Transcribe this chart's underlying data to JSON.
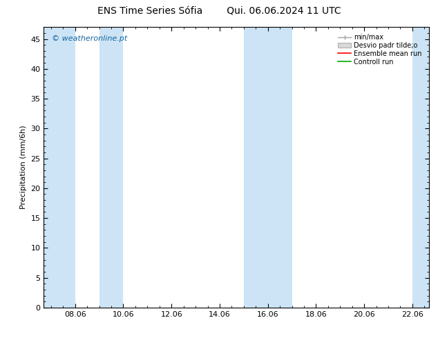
{
  "title": "ENS Time Series Sófia        Qui. 06.06.2024 11 UTC",
  "ylabel": "Precipitation (mm/6h)",
  "ylim": [
    0,
    47
  ],
  "yticks": [
    0,
    5,
    10,
    15,
    20,
    25,
    30,
    35,
    40,
    45
  ],
  "xlim_start": 6.7,
  "xlim_end": 22.7,
  "xtick_positions": [
    8.0,
    10.0,
    12.0,
    14.0,
    16.0,
    18.0,
    20.0,
    22.0
  ],
  "xtick_labels": [
    "08.06",
    "10.06",
    "12.06",
    "14.06",
    "16.06",
    "18.06",
    "20.06",
    "22.06"
  ],
  "shaded_bands": [
    [
      6.7,
      8.0
    ],
    [
      9.0,
      10.0
    ],
    [
      15.0,
      17.0
    ],
    [
      22.0,
      22.7
    ]
  ],
  "shade_color": "#cce4f5",
  "watermark": "© weatheronline.pt",
  "watermark_color": "#1565a0",
  "legend_label_minmax": "min/max",
  "legend_label_desvio": "Desvio padr tilde;o",
  "legend_label_ensemble": "Ensemble mean run",
  "legend_label_control": "Controll run",
  "color_minmax": "#a0a0a0",
  "color_desvio_face": "#d8d8d8",
  "color_desvio_edge": "#a0a0a0",
  "color_ensemble": "#ff0000",
  "color_control": "#00aa00",
  "background_color": "#ffffff",
  "title_fontsize": 10,
  "ylabel_fontsize": 8,
  "tick_fontsize": 8,
  "legend_fontsize": 7,
  "watermark_fontsize": 8
}
